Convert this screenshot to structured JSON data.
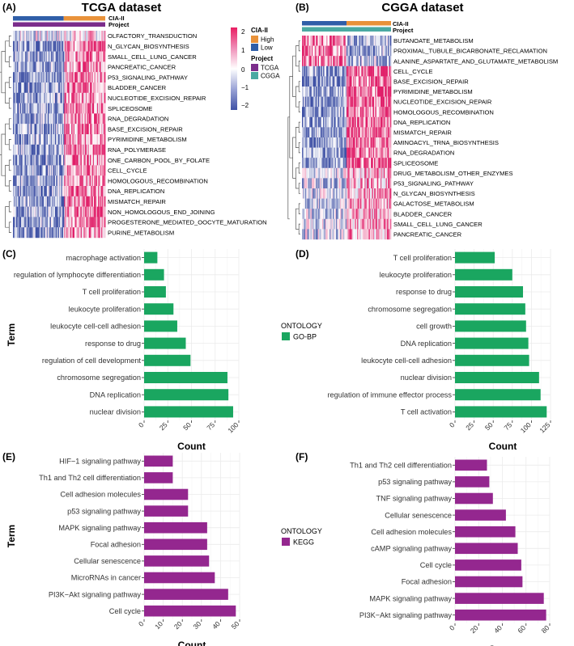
{
  "colors": {
    "green": "#1aa660",
    "purple": "#94278f",
    "cia_high": "#e9923a",
    "cia_low": "#2f5ea8",
    "proj_tcga": "#7b2d8b",
    "proj_cgga": "#4aa9a2",
    "heat_high": "#c2185b",
    "heat_mid": "#ffffff",
    "heat_low": "#3f51a5",
    "grid": "#ebebeb"
  },
  "panel_labels": [
    "(A)",
    "(B)",
    "(C)",
    "(D)",
    "(E)",
    "(F)"
  ],
  "axis_titles": {
    "term": "Term",
    "count": "Count"
  },
  "annotation_labels": {
    "cia": "CIA-II",
    "project": "Project"
  },
  "legend": {
    "scale_ticks": [
      "2",
      "1",
      "0",
      "−1",
      "−2"
    ],
    "cia_title": "CIA-II",
    "cia_items": [
      "High",
      "Low"
    ],
    "project_title": "Project",
    "project_items": [
      "TCGA",
      "CGGA"
    ]
  },
  "ontology": {
    "title": "ONTOLOGY",
    "go_bp": "GO-BP",
    "kegg": "KEGG"
  },
  "chart_data": [
    {
      "type": "heatmap",
      "panel": "(A)",
      "title": "TCGA dataset",
      "annotation": {
        "cia_high_fraction": 0.45,
        "project": "TCGA"
      },
      "rows": [
        "OLFACTORY_TRANSDUCTION",
        "N_GLYCAN_BIOSYNTHESIS",
        "SMALL_CELL_LUNG_CANCER",
        "PANCREATIC_CANCER",
        "P53_SIGNALING_PATHWAY",
        "BLADDER_CANCER",
        "NUCLEOTIDE_EXCISION_REPAIR",
        "SPLICEOSOME",
        "RNA_DEGRADATION",
        "BASE_EXCISION_REPAIR",
        "PYRIMIDINE_METABOLISM",
        "RNA_POLYMERASE",
        "ONE_CARBON_POOL_BY_FOLATE",
        "CELL_CYCLE",
        "HOMOLOGOUS_RECOMBINATION",
        "DNA_REPLICATION",
        "MISMATCH_REPAIR",
        "NON_HOMOLOGOUS_END_JOINING",
        "PROGESTERONE_MEDIATED_OOCYTE_MATURATION",
        "PURINE_METABOLISM"
      ],
      "color_scale": [
        -2.5,
        2.5
      ]
    },
    {
      "type": "heatmap",
      "panel": "(B)",
      "title": "CGGA dataset",
      "annotation": {
        "cia_high_fraction": 0.5,
        "project": "CGGA"
      },
      "rows": [
        "BUTANOATE_METABOLISM",
        "PROXIMAL_TUBULE_BICARBONATE_RECLAMATION",
        "ALANINE_ASPARTATE_AND_GLUTAMATE_METABOLISM",
        "CELL_CYCLE",
        "BASE_EXCISION_REPAIR",
        "PYRIMIDINE_METABOLISM",
        "NUCLEOTIDE_EXCISION_REPAIR",
        "HOMOLOGOUS_RECOMBINATION",
        "DNA_REPLICATION",
        "MISMATCH_REPAIR",
        "AMINOACYL_TRNA_BIOSYNTHESIS",
        "RNA_DEGRADATION",
        "SPLICEOSOME",
        "DRUG_METABOLISM_OTHER_ENZYMES",
        "P53_SIGNALING_PATHWAY",
        "N_GLYCAN_BIOSYNTHESIS",
        "GALACTOSE_METABOLISM",
        "BLADDER_CANCER",
        "SMALL_CELL_LUNG_CANCER",
        "PANCREATIC_CANCER"
      ],
      "color_scale": [
        -2.5,
        2.5
      ]
    },
    {
      "type": "bar",
      "orientation": "horizontal",
      "panel": "(C)",
      "ontology": "GO-BP",
      "xlabel": "Count",
      "ylabel": "Term",
      "categories": [
        "macrophage activation",
        "regulation of lymphocyte differentiation",
        "T cell proliferation",
        "leukocyte proliferation",
        "leukocyte cell-cell adhesion",
        "response to drug",
        "regulation of cell development",
        "chromosome segregation",
        "DNA replication",
        "nuclear division"
      ],
      "values": [
        14,
        21,
        23,
        31,
        35,
        44,
        49,
        88,
        89,
        94
      ],
      "xlim": [
        0,
        100
      ],
      "xticks": [
        0,
        25,
        50,
        75,
        100
      ],
      "grid": true
    },
    {
      "type": "bar",
      "orientation": "horizontal",
      "panel": "(D)",
      "ontology": "GO-BP",
      "xlabel": "Count",
      "categories": [
        "T cell proliferation",
        "leukocyte proliferation",
        "response to drug",
        "chromosome segregation",
        "cell growth",
        "DNA replication",
        "leukocyte cell-cell adhesion",
        "nuclear division",
        "regulation of immune effector process",
        "T cell activation"
      ],
      "values": [
        52,
        75,
        89,
        92,
        93,
        96,
        97,
        110,
        112,
        120
      ],
      "xlim": [
        0,
        125
      ],
      "xticks": [
        0,
        25,
        50,
        75,
        100,
        125
      ],
      "grid": true
    },
    {
      "type": "bar",
      "orientation": "horizontal",
      "panel": "(E)",
      "ontology": "KEGG",
      "xlabel": "Count",
      "ylabel": "Term",
      "categories": [
        "HIF−1 signaling pathway",
        "Th1 and Th2 cell differentiation",
        "Cell adhesion molecules",
        "p53 signaling pathway",
        "MAPK signaling pathway",
        "Focal adhesion",
        "Cellular senescence",
        "MicroRNAs in cancer",
        "PI3K−Akt signaling pathway",
        "Cell cycle"
      ],
      "values": [
        15,
        15,
        23,
        23,
        33,
        33,
        34,
        37,
        44,
        48
      ],
      "xlim": [
        0,
        50
      ],
      "xticks": [
        0,
        10,
        20,
        30,
        40,
        50
      ],
      "grid": true
    },
    {
      "type": "bar",
      "orientation": "horizontal",
      "panel": "(F)",
      "ontology": "KEGG",
      "xlabel": "Count",
      "categories": [
        "Th1 and Th2 cell differentiation",
        "p53 signaling pathway",
        "TNF signaling pathway",
        "Cellular senescence",
        "Cell adhesion molecules",
        "cAMP signaling pathway",
        "Cell cycle",
        "Focal adhesion",
        "MAPK signaling pathway",
        "PI3K−Akt signaling pathway"
      ],
      "values": [
        27,
        29,
        32,
        43,
        51,
        53,
        56,
        57,
        75,
        77
      ],
      "xlim": [
        0,
        80
      ],
      "xticks": [
        0,
        20,
        40,
        60,
        80
      ],
      "grid": true
    }
  ]
}
